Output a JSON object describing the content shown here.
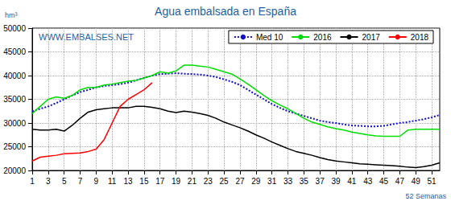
{
  "chart_data": {
    "type": "line",
    "title": "Agua embalsada en España",
    "ylabel": "hm³",
    "xlabel": "52 Semanas",
    "annotations": [
      "WWW.EMBALSES.NET"
    ],
    "x": [
      1,
      2,
      3,
      4,
      5,
      6,
      7,
      8,
      9,
      10,
      11,
      12,
      13,
      14,
      15,
      16,
      17,
      18,
      19,
      20,
      21,
      22,
      23,
      24,
      25,
      26,
      27,
      28,
      29,
      30,
      31,
      32,
      33,
      34,
      35,
      36,
      37,
      38,
      39,
      40,
      41,
      42,
      43,
      44,
      45,
      46,
      47,
      48,
      49,
      50,
      51,
      52
    ],
    "xlim": [
      1,
      52
    ],
    "xticks": [
      1,
      3,
      5,
      7,
      9,
      11,
      13,
      15,
      17,
      19,
      21,
      23,
      25,
      27,
      29,
      31,
      33,
      35,
      37,
      39,
      41,
      43,
      45,
      47,
      49,
      51
    ],
    "ylim": [
      20000,
      50000
    ],
    "yticks": [
      20000,
      25000,
      30000,
      35000,
      40000,
      45000,
      50000
    ],
    "grid": true,
    "legend": "upper right",
    "marker": "none",
    "series": [
      {
        "name": "Med 10",
        "color": "#1010c8",
        "line_style": "dotted",
        "values": [
          32500,
          33000,
          33500,
          34200,
          35000,
          35800,
          36500,
          37000,
          37500,
          37800,
          38000,
          38200,
          38500,
          39000,
          39500,
          40000,
          40300,
          40400,
          40500,
          40400,
          40300,
          40200,
          40000,
          39700,
          39200,
          38700,
          38000,
          37000,
          36000,
          35000,
          34000,
          33200,
          32500,
          32000,
          31500,
          31000,
          30500,
          30200,
          30000,
          29700,
          29500,
          29400,
          29300,
          29300,
          29400,
          29700,
          30000,
          30200,
          30500,
          30800,
          31200,
          31700
        ]
      },
      {
        "name": "2016",
        "color": "#00dd00",
        "line_style": "solid",
        "values": [
          32000,
          33500,
          35000,
          35500,
          35200,
          35800,
          37000,
          37500,
          37500,
          38000,
          38200,
          38500,
          38800,
          39000,
          39500,
          40000,
          40800,
          40500,
          41000,
          42200,
          42200,
          42000,
          41800,
          41300,
          40800,
          40300,
          39300,
          38200,
          37000,
          35800,
          34700,
          33800,
          33000,
          32000,
          31000,
          30200,
          29700,
          29200,
          28800,
          28500,
          28100,
          27800,
          27500,
          27300,
          27200,
          27200,
          27200,
          28500,
          28700,
          28700,
          28700,
          28700
        ]
      },
      {
        "name": "2017",
        "color": "#000000",
        "line_style": "solid",
        "values": [
          28700,
          28500,
          28500,
          28700,
          28300,
          29500,
          31000,
          32300,
          32800,
          33000,
          33200,
          33200,
          33200,
          33500,
          33500,
          33300,
          33000,
          32500,
          32200,
          32500,
          32300,
          32000,
          31600,
          31000,
          30200,
          29600,
          29000,
          28300,
          27500,
          26800,
          26000,
          25300,
          24600,
          24000,
          23600,
          23200,
          22700,
          22300,
          22000,
          21800,
          21600,
          21400,
          21300,
          21200,
          21100,
          21000,
          20900,
          20700,
          20600,
          20800,
          21100,
          21600
        ]
      },
      {
        "name": "2018",
        "color": "#ff0000",
        "line_style": "solid",
        "values": [
          22000,
          22800,
          23000,
          23200,
          23500,
          23600,
          23700,
          24000,
          24500,
          26500,
          30000,
          33500,
          35000,
          36000,
          37000,
          38500,
          null,
          null,
          null,
          null,
          null,
          null,
          null,
          null,
          null,
          null,
          null,
          null,
          null,
          null,
          null,
          null,
          null,
          null,
          null,
          null,
          null,
          null,
          null,
          null,
          null,
          null,
          null,
          null,
          null,
          null,
          null,
          null,
          null,
          null,
          null,
          null
        ]
      }
    ]
  }
}
